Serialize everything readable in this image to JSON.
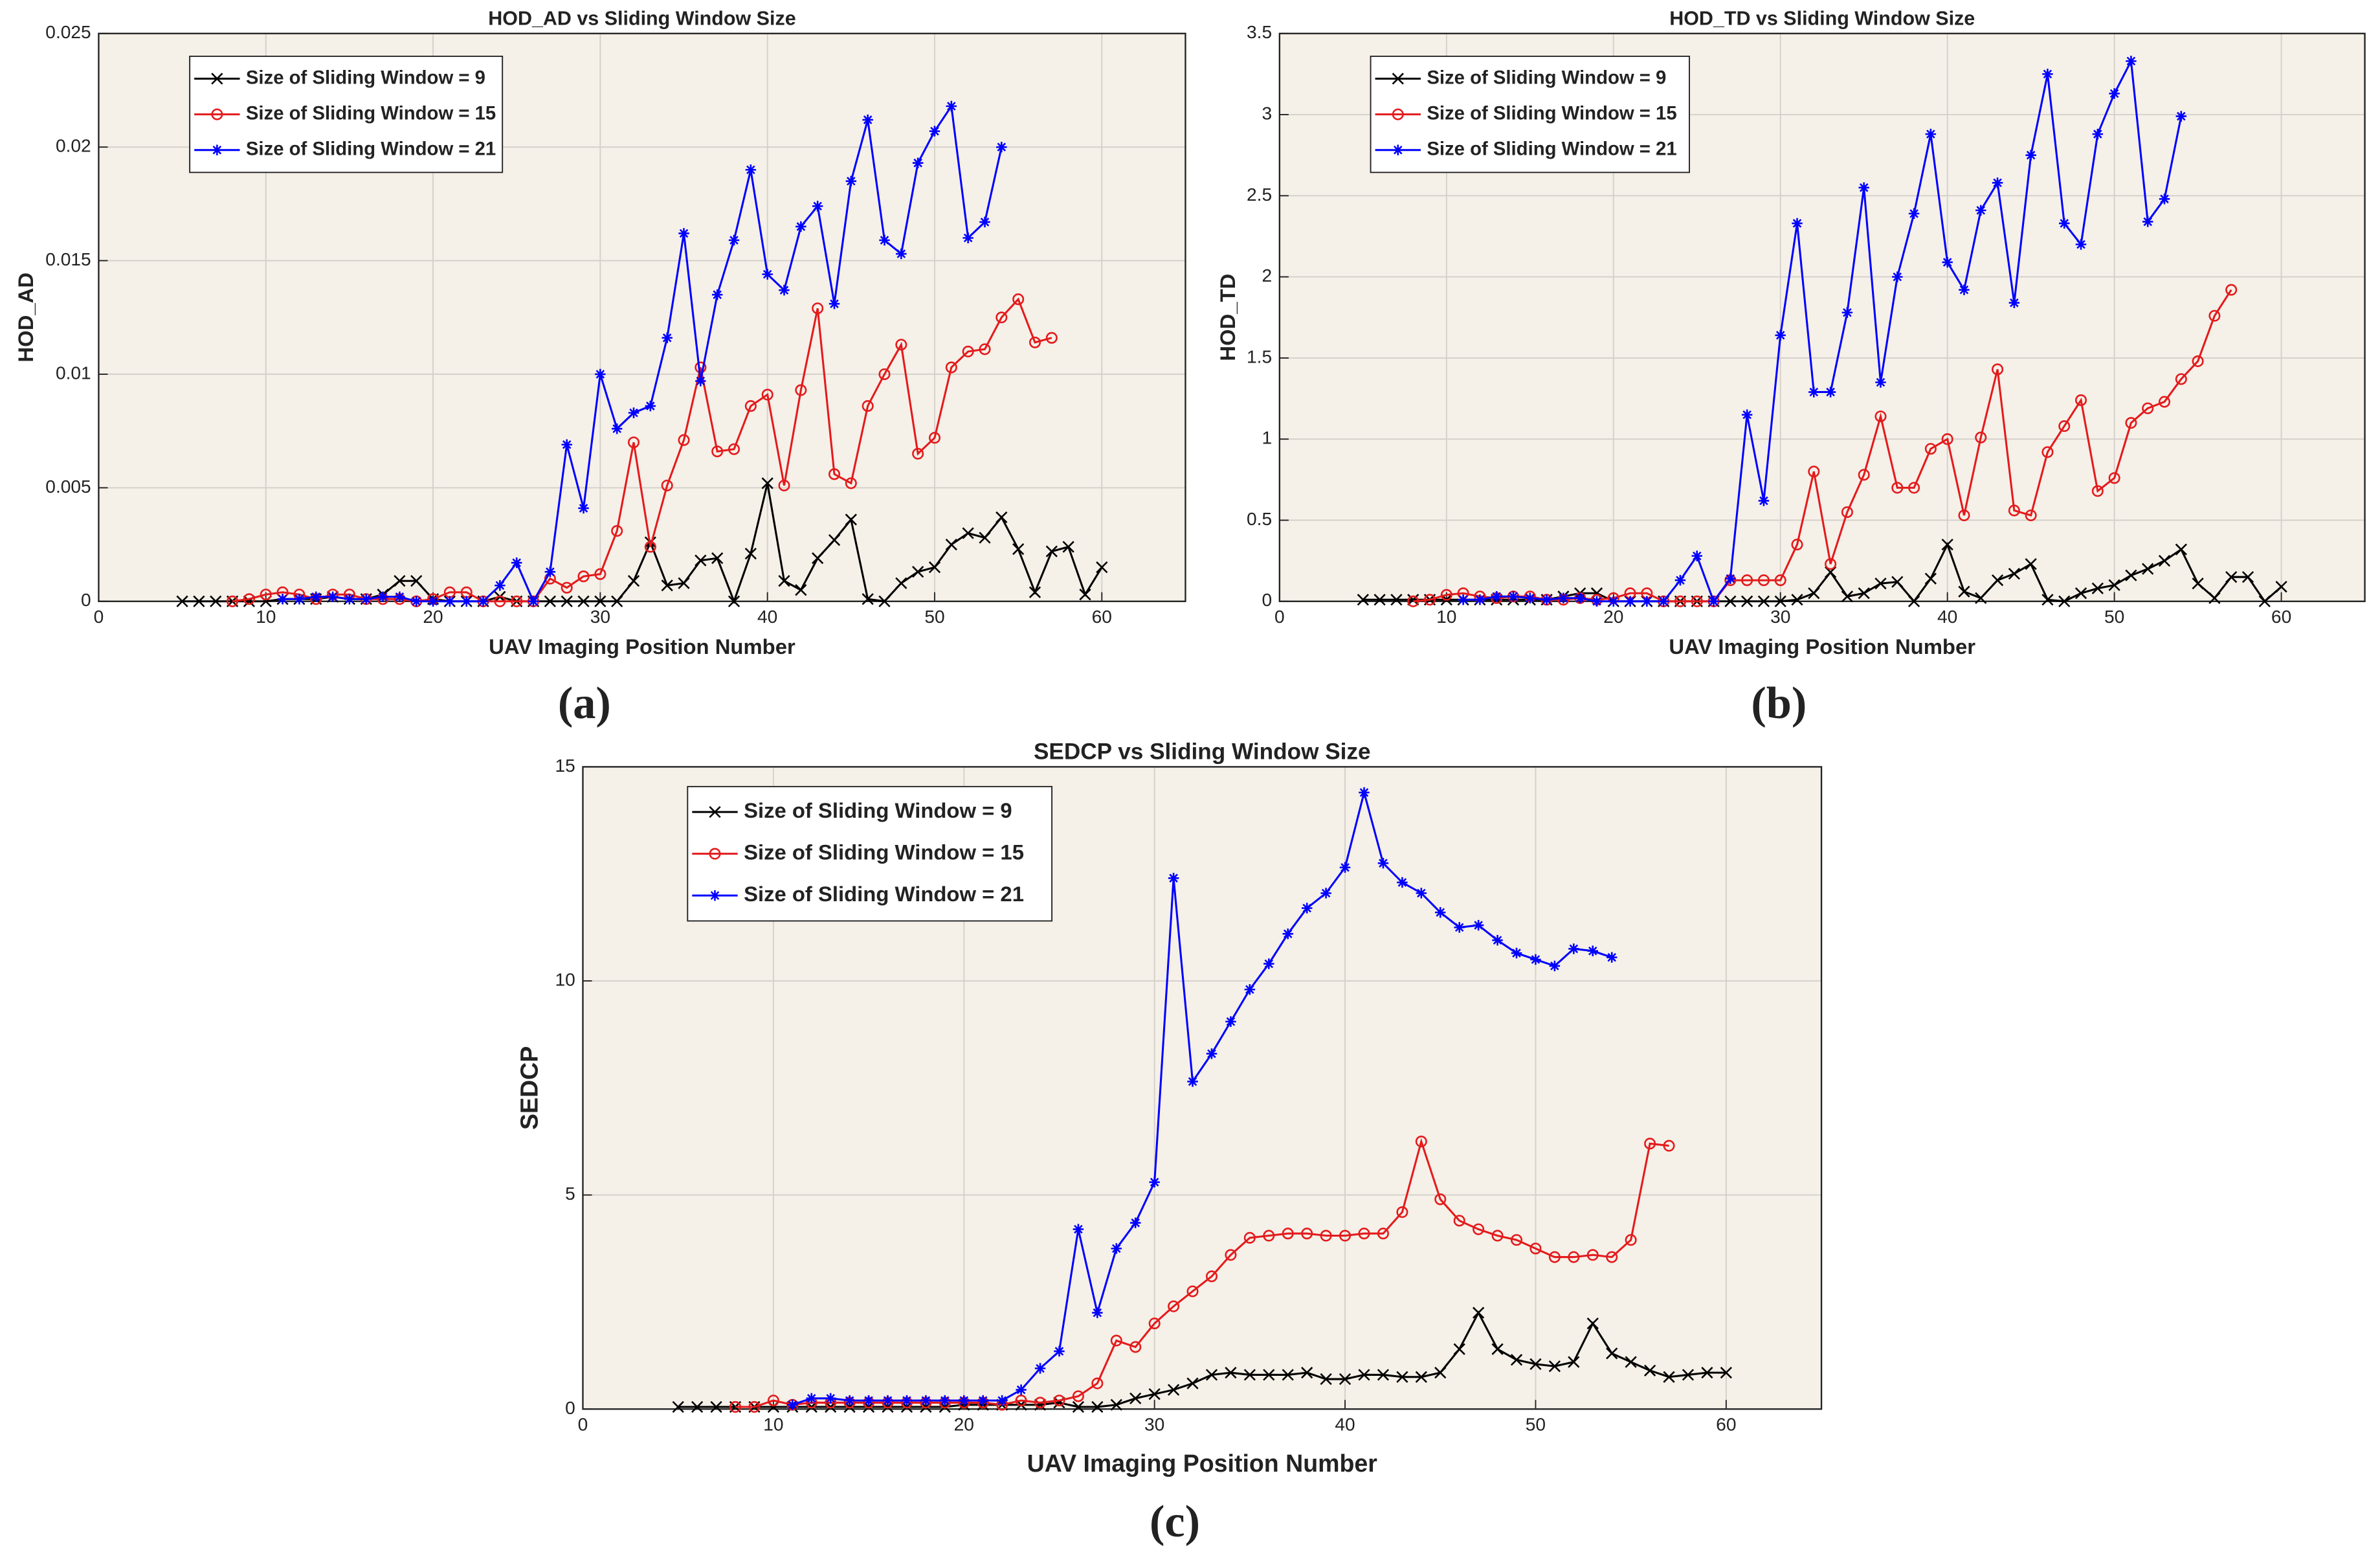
{
  "chart_data": [
    {
      "type": "line",
      "caption": "(a)",
      "title": "HOD_AD vs Sliding Window Size",
      "x_label": "UAV Imaging Position Number",
      "y_label": "HOD_AD",
      "xlim": [
        0,
        65
      ],
      "xticks": [
        0,
        10,
        20,
        30,
        40,
        50,
        60
      ],
      "ylim": [
        0,
        0.025
      ],
      "yticks": [
        0,
        0.005,
        0.01,
        0.015,
        0.02,
        0.025
      ],
      "grid": true,
      "legend": "upper left",
      "series": [
        {
          "name": "Size of Sliding Window = 9",
          "color": "#000000",
          "marker": "x",
          "x": [
            5,
            6,
            7,
            8,
            9,
            10,
            11,
            12,
            13,
            14,
            15,
            16,
            17,
            18,
            19,
            20,
            21,
            22,
            23,
            24,
            25,
            26,
            27,
            28,
            29,
            30,
            31,
            32,
            33,
            34,
            35,
            36,
            37,
            38,
            39,
            40,
            41,
            42,
            43,
            44,
            45,
            46,
            47,
            48,
            49,
            50,
            51,
            52,
            53,
            54,
            55,
            56,
            57,
            58,
            59,
            60
          ],
          "values": [
            0,
            0,
            0,
            0,
            0,
            0,
            0.0001,
            0.0001,
            0.0001,
            0.0002,
            0.0001,
            0.0001,
            0.0003,
            0.0009,
            0.0009,
            0.0001,
            0,
            0,
            0,
            0.0002,
            0,
            0,
            0,
            0,
            0,
            0,
            0,
            0.0009,
            0.0026,
            0.0007,
            0.0008,
            0.0018,
            0.0019,
            0,
            0.0021,
            0.0052,
            0.0009,
            0.0005,
            0.0019,
            0.0027,
            0.0036,
            0.0001,
            0,
            0.0008,
            0.0013,
            0.0015,
            0.0025,
            0.003,
            0.0028,
            0.0037,
            0.0023,
            0.0004,
            0.0022,
            0.0024,
            0.0003,
            0.0015
          ]
        },
        {
          "name": "Size of Sliding Window = 15",
          "color": "#e41a1c",
          "marker": "o",
          "x": [
            8,
            9,
            10,
            11,
            12,
            13,
            14,
            15,
            16,
            17,
            18,
            19,
            20,
            21,
            22,
            23,
            24,
            25,
            26,
            27,
            28,
            29,
            30,
            31,
            32,
            33,
            34,
            35,
            36,
            37,
            38,
            39,
            40,
            41,
            42,
            43,
            44,
            45,
            46,
            47,
            48,
            49,
            50,
            51,
            52,
            53,
            54,
            55,
            56,
            57
          ],
          "values": [
            0,
            0.0001,
            0.0003,
            0.0004,
            0.0003,
            0.0001,
            0.0003,
            0.0003,
            0.0001,
            0.0001,
            0.0001,
            0,
            0.0001,
            0.0004,
            0.0004,
            0,
            0,
            0,
            0,
            0.001,
            0.0006,
            0.0011,
            0.0012,
            0.0031,
            0.007,
            0.0024,
            0.0051,
            0.0071,
            0.0103,
            0.0066,
            0.0067,
            0.0086,
            0.0091,
            0.0051,
            0.0093,
            0.0129,
            0.0056,
            0.0052,
            0.0086,
            0.01,
            0.0113,
            0.0065,
            0.0072,
            0.0103,
            0.011,
            0.0111,
            0.0125,
            0.0133,
            0.0114,
            0.0116
          ]
        },
        {
          "name": "Size of Sliding Window = 21",
          "color": "#0000ff",
          "marker": "*",
          "x": [
            11,
            12,
            13,
            14,
            15,
            16,
            17,
            18,
            19,
            20,
            21,
            22,
            23,
            24,
            25,
            26,
            27,
            28,
            29,
            30,
            31,
            32,
            33,
            34,
            35,
            36,
            37,
            38,
            39,
            40,
            41,
            42,
            43,
            44,
            45,
            46,
            47,
            48,
            49,
            50,
            51,
            52,
            53,
            54
          ],
          "values": [
            0.0001,
            0.0001,
            0.0002,
            0.0002,
            0.0001,
            0.0001,
            0.0002,
            0.0002,
            0,
            0,
            0,
            0,
            0,
            0.0007,
            0.0017,
            0,
            0.0013,
            0.0069,
            0.0041,
            0.01,
            0.0076,
            0.0083,
            0.0086,
            0.0116,
            0.0162,
            0.0097,
            0.0135,
            0.0159,
            0.019,
            0.0144,
            0.0137,
            0.0165,
            0.0174,
            0.0131,
            0.0185,
            0.0212,
            0.0159,
            0.0153,
            0.0193,
            0.0207,
            0.0218,
            0.016,
            0.0167,
            0.02
          ]
        }
      ]
    },
    {
      "type": "line",
      "caption": "(b)",
      "title": "HOD_TD vs Sliding Window Size",
      "x_label": "UAV Imaging Position Number",
      "y_label": "HOD_TD",
      "xlim": [
        0,
        65
      ],
      "xticks": [
        0,
        10,
        20,
        30,
        40,
        50,
        60
      ],
      "ylim": [
        0,
        3.5
      ],
      "yticks": [
        0,
        0.5,
        1,
        1.5,
        2,
        2.5,
        3,
        3.5
      ],
      "grid": true,
      "legend": "upper left",
      "series": [
        {
          "name": "Size of Sliding Window = 9",
          "color": "#000000",
          "marker": "x",
          "x": [
            5,
            6,
            7,
            8,
            9,
            10,
            11,
            12,
            13,
            14,
            15,
            16,
            17,
            18,
            19,
            20,
            21,
            22,
            23,
            24,
            25,
            26,
            27,
            28,
            29,
            30,
            31,
            32,
            33,
            34,
            35,
            36,
            37,
            38,
            39,
            40,
            41,
            42,
            43,
            44,
            45,
            46,
            47,
            48,
            49,
            50,
            51,
            52,
            53,
            54,
            55,
            56,
            57,
            58,
            59,
            60
          ],
          "values": [
            0.01,
            0.01,
            0.01,
            0.01,
            0.01,
            0.01,
            0.01,
            0.01,
            0.01,
            0.01,
            0.01,
            0.01,
            0.03,
            0.05,
            0.05,
            0,
            0,
            0,
            0,
            0,
            0,
            0,
            0,
            0,
            0,
            0,
            0.01,
            0.05,
            0.18,
            0.03,
            0.05,
            0.11,
            0.12,
            0,
            0.14,
            0.35,
            0.06,
            0.02,
            0.13,
            0.17,
            0.23,
            0.01,
            0,
            0.05,
            0.08,
            0.1,
            0.16,
            0.2,
            0.25,
            0.32,
            0.11,
            0.02,
            0.15,
            0.15,
            0,
            0.09
          ]
        },
        {
          "name": "Size of Sliding Window = 15",
          "color": "#e41a1c",
          "marker": "o",
          "x": [
            8,
            9,
            10,
            11,
            12,
            13,
            14,
            15,
            16,
            17,
            18,
            19,
            20,
            21,
            22,
            23,
            24,
            25,
            26,
            27,
            28,
            29,
            30,
            31,
            32,
            33,
            34,
            35,
            36,
            37,
            38,
            39,
            40,
            41,
            42,
            43,
            44,
            45,
            46,
            47,
            48,
            49,
            50,
            51,
            52,
            53,
            54,
            55,
            56,
            57
          ],
          "values": [
            0,
            0.01,
            0.04,
            0.05,
            0.03,
            0.02,
            0.03,
            0.03,
            0.01,
            0.01,
            0.02,
            0.01,
            0.02,
            0.05,
            0.05,
            0,
            0,
            0,
            0,
            0.13,
            0.13,
            0.13,
            0.13,
            0.35,
            0.8,
            0.23,
            0.55,
            0.78,
            1.14,
            0.7,
            0.7,
            0.94,
            1,
            0.53,
            1.01,
            1.43,
            0.56,
            0.53,
            0.92,
            1.08,
            1.24,
            0.68,
            0.76,
            1.1,
            1.19,
            1.23,
            1.37,
            1.48,
            1.76,
            1.92
          ]
        },
        {
          "name": "Size of Sliding Window = 21",
          "color": "#0000ff",
          "marker": "*",
          "x": [
            11,
            12,
            13,
            14,
            15,
            16,
            17,
            18,
            19,
            20,
            21,
            22,
            23,
            24,
            25,
            26,
            27,
            28,
            29,
            30,
            31,
            32,
            33,
            34,
            35,
            36,
            37,
            38,
            39,
            40,
            41,
            42,
            43,
            44,
            45,
            46,
            47,
            48,
            49,
            50,
            51,
            52,
            53,
            54
          ],
          "values": [
            0.01,
            0.01,
            0.03,
            0.03,
            0.02,
            0.01,
            0.02,
            0.02,
            0,
            0,
            0,
            0,
            0,
            0.13,
            0.28,
            0,
            0.14,
            1.15,
            0.62,
            1.64,
            2.33,
            1.29,
            1.29,
            1.78,
            2.55,
            1.35,
            2,
            2.39,
            2.88,
            2.09,
            1.92,
            2.41,
            2.58,
            1.84,
            2.75,
            3.25,
            2.33,
            2.2,
            2.88,
            3.13,
            3.33,
            2.34,
            2.48,
            2.99
          ]
        }
      ]
    },
    {
      "type": "line",
      "caption": "(c)",
      "title": "SEDCP vs Sliding Window Size",
      "x_label": "UAV Imaging Position Number",
      "y_label": "SEDCP",
      "xlim": [
        0,
        65
      ],
      "xticks": [
        0,
        10,
        20,
        30,
        40,
        50,
        60
      ],
      "ylim": [
        0,
        15
      ],
      "yticks": [
        0,
        5,
        10,
        15
      ],
      "grid": true,
      "legend": "upper left",
      "series": [
        {
          "name": "Size of Sliding Window = 9",
          "color": "#000000",
          "marker": "x",
          "x": [
            5,
            6,
            7,
            8,
            9,
            10,
            11,
            12,
            13,
            14,
            15,
            16,
            17,
            18,
            19,
            20,
            21,
            22,
            23,
            24,
            25,
            26,
            27,
            28,
            29,
            30,
            31,
            32,
            33,
            34,
            35,
            36,
            37,
            38,
            39,
            40,
            41,
            42,
            43,
            44,
            45,
            46,
            47,
            48,
            49,
            50,
            51,
            52,
            53,
            54,
            55,
            56,
            57,
            58,
            59,
            60
          ],
          "values": [
            0.05,
            0.05,
            0.05,
            0.05,
            0.05,
            0.05,
            0.05,
            0.05,
            0.05,
            0.05,
            0.05,
            0.05,
            0.05,
            0.05,
            0.05,
            0.1,
            0.1,
            0.1,
            0.1,
            0.1,
            0.15,
            0.05,
            0.05,
            0.1,
            0.25,
            0.35,
            0.45,
            0.6,
            0.8,
            0.85,
            0.8,
            0.8,
            0.8,
            0.85,
            0.7,
            0.7,
            0.8,
            0.8,
            0.75,
            0.75,
            0.85,
            1.4,
            2.25,
            1.4,
            1.15,
            1.05,
            1,
            1.1,
            2,
            1.3,
            1.1,
            0.9,
            0.75,
            0.8,
            0.85,
            0.85
          ]
        },
        {
          "name": "Size of Sliding Window = 15",
          "color": "#e41a1c",
          "marker": "o",
          "x": [
            8,
            9,
            10,
            11,
            12,
            13,
            14,
            15,
            16,
            17,
            18,
            19,
            20,
            21,
            22,
            23,
            24,
            25,
            26,
            27,
            28,
            29,
            30,
            31,
            32,
            33,
            34,
            35,
            36,
            37,
            38,
            39,
            40,
            41,
            42,
            43,
            44,
            45,
            46,
            47,
            48,
            49,
            50,
            51,
            52,
            53,
            54,
            55,
            56,
            57
          ],
          "values": [
            0.05,
            0.05,
            0.2,
            0.1,
            0.15,
            0.15,
            0.15,
            0.15,
            0.15,
            0.15,
            0.15,
            0.15,
            0.15,
            0.15,
            0.1,
            0.2,
            0.15,
            0.2,
            0.3,
            0.6,
            1.6,
            1.45,
            2,
            2.4,
            2.75,
            3.1,
            3.6,
            4,
            4.05,
            4.1,
            4.1,
            4.05,
            4.05,
            4.1,
            4.1,
            4.6,
            6.25,
            4.9,
            4.4,
            4.2,
            4.05,
            3.95,
            3.75,
            3.55,
            3.55,
            3.6,
            3.55,
            3.95,
            6.2,
            6.15
          ]
        },
        {
          "name": "Size of Sliding Window = 21",
          "color": "#0000ff",
          "marker": "*",
          "x": [
            11,
            12,
            13,
            14,
            15,
            16,
            17,
            18,
            19,
            20,
            21,
            22,
            23,
            24,
            25,
            26,
            27,
            28,
            29,
            30,
            31,
            32,
            33,
            34,
            35,
            36,
            37,
            38,
            39,
            40,
            41,
            42,
            43,
            44,
            45,
            46,
            47,
            48,
            49,
            50,
            51,
            52,
            53,
            54
          ],
          "values": [
            0.1,
            0.25,
            0.25,
            0.2,
            0.2,
            0.2,
            0.2,
            0.2,
            0.2,
            0.2,
            0.2,
            0.2,
            0.45,
            0.95,
            1.35,
            4.2,
            2.25,
            3.75,
            4.35,
            5.3,
            12.4,
            7.65,
            8.3,
            9.05,
            9.8,
            10.4,
            11.1,
            11.7,
            12.05,
            12.65,
            14.4,
            12.75,
            12.3,
            12.05,
            11.6,
            11.25,
            11.3,
            10.95,
            10.65,
            10.5,
            10.35,
            10.75,
            10.7,
            10.55
          ]
        }
      ]
    }
  ]
}
